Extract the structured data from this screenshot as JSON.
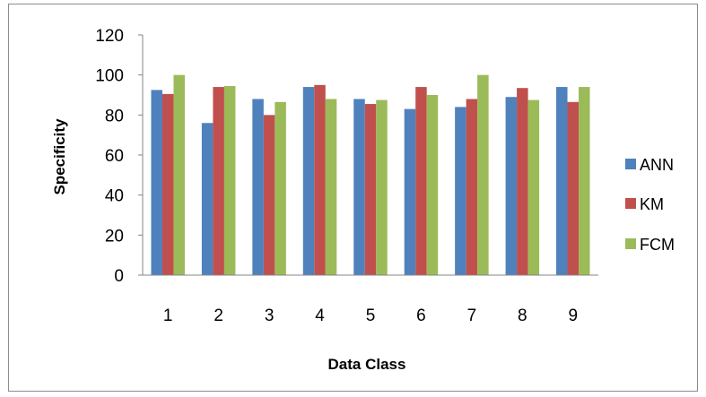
{
  "chart_data": {
    "type": "bar",
    "title": "",
    "xlabel": "Data Class",
    "ylabel": "Specificity",
    "categories": [
      "1",
      "2",
      "3",
      "4",
      "5",
      "6",
      "7",
      "8",
      "9"
    ],
    "ylim": [
      0,
      120
    ],
    "yticks": [
      "0",
      "20",
      "40",
      "60",
      "80",
      "100",
      "120"
    ],
    "grid": false,
    "legend_position": "right",
    "series": [
      {
        "name": "ANN",
        "color": "#4f81bd",
        "values": [
          92.5,
          76,
          88,
          94,
          88,
          83,
          84,
          89,
          94
        ]
      },
      {
        "name": "KM",
        "color": "#c0504d",
        "values": [
          90.5,
          94,
          80,
          95,
          85.5,
          94,
          88,
          93.5,
          86.5
        ]
      },
      {
        "name": "FCM",
        "color": "#9bbb59",
        "values": [
          100,
          94.5,
          86.5,
          88,
          87.5,
          90,
          100,
          87.5,
          94
        ]
      }
    ]
  }
}
